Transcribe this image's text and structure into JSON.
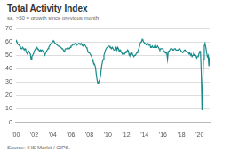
{
  "chart_data": {
    "type": "line",
    "title": "Total Activity Index",
    "subtitle": "sa, >50 = growth since previous month",
    "source": "Source: IHS Markit / CIPS.",
    "categories": [
      "'00",
      null,
      null,
      null,
      null,
      null,
      null,
      null,
      null,
      null,
      null,
      null,
      null,
      null,
      null,
      null,
      null,
      null,
      null,
      null,
      null,
      null,
      null,
      null,
      "'02",
      null,
      null,
      null,
      null,
      null,
      null,
      null,
      null,
      null,
      null,
      null,
      null,
      null,
      null,
      null,
      null,
      null,
      null,
      null,
      null,
      null,
      null,
      null,
      "'04",
      null,
      null,
      null,
      null,
      null,
      null,
      null,
      null,
      null,
      null,
      null,
      null,
      null,
      null,
      null,
      null,
      null,
      null,
      null,
      null,
      null,
      null,
      null,
      "'06",
      null,
      null,
      null,
      null,
      null,
      null,
      null,
      null,
      null,
      null,
      null,
      null,
      null,
      null,
      null,
      null,
      null,
      null,
      null,
      null,
      null,
      null,
      null,
      "'08",
      null,
      null,
      null,
      null,
      null,
      null,
      null,
      null,
      null,
      null,
      null,
      null,
      null,
      null,
      null,
      null,
      null,
      null,
      null,
      null,
      null,
      null,
      null,
      "'10",
      null,
      null,
      null,
      null,
      null,
      null,
      null,
      null,
      null,
      null,
      null,
      null,
      null,
      null,
      null,
      null,
      null,
      null,
      null,
      null,
      null,
      null,
      null,
      "'12",
      null,
      null,
      null,
      null,
      null,
      null,
      null,
      null,
      null,
      null,
      null,
      null,
      null,
      null,
      null,
      null,
      null,
      null,
      null,
      null,
      null,
      null,
      null,
      "'14",
      null,
      null,
      null,
      null,
      null,
      null,
      null,
      null,
      null,
      null,
      null,
      null,
      null,
      null,
      null,
      null,
      null,
      null,
      null,
      null,
      null,
      null,
      null,
      "'16",
      null,
      null,
      null,
      null,
      null,
      null,
      null,
      null,
      null,
      null,
      null,
      null,
      null,
      null,
      null,
      null,
      null,
      null,
      null,
      null,
      null,
      null,
      null,
      "'18",
      null,
      null,
      null,
      null,
      null,
      null,
      null,
      null,
      null,
      null,
      null,
      null,
      null,
      null,
      null,
      null,
      null,
      null,
      null,
      null,
      null,
      null,
      null,
      "'20",
      null,
      null,
      null,
      null,
      null,
      null,
      null,
      null,
      null,
      null,
      null,
      null,
      null
    ],
    "values": [
      60,
      61,
      59,
      58,
      58,
      57,
      56,
      55,
      55,
      56,
      55,
      54,
      55,
      54,
      52,
      51,
      52,
      53,
      52,
      51,
      47,
      49,
      50,
      51,
      53,
      54,
      55,
      56,
      55,
      55,
      54,
      53,
      54,
      53,
      54,
      54,
      53,
      51,
      50,
      52,
      53,
      54,
      55,
      56,
      57,
      58,
      59,
      59,
      60,
      61,
      60,
      59,
      59,
      58,
      58,
      57,
      57,
      57,
      56,
      56,
      55,
      55,
      54,
      53,
      54,
      55,
      55,
      55,
      56,
      55,
      55,
      56,
      57,
      57,
      58,
      58,
      58,
      59,
      59,
      58,
      58,
      58,
      59,
      59,
      58,
      59,
      58,
      58,
      57,
      58,
      58,
      57,
      56,
      55,
      53,
      52,
      52,
      51,
      50,
      49,
      47,
      45,
      44,
      43,
      41,
      36,
      32,
      29,
      30,
      31,
      33,
      37,
      42,
      45,
      47,
      50,
      52,
      54,
      55,
      56,
      56,
      57,
      57,
      56,
      56,
      55,
      56,
      55,
      54,
      54,
      55,
      56,
      54,
      56,
      55,
      53,
      54,
      53,
      52,
      51,
      52,
      51,
      51,
      52,
      53,
      53,
      54,
      53,
      50,
      51,
      49,
      52,
      51,
      50,
      49,
      50,
      50,
      51,
      52,
      53,
      54,
      56,
      58,
      60,
      60,
      62,
      61,
      60,
      59,
      59,
      58,
      59,
      59,
      58,
      58,
      58,
      56,
      56,
      57,
      56,
      56,
      57,
      58,
      56,
      56,
      57,
      56,
      55,
      54,
      55,
      55,
      55,
      55,
      53,
      53,
      52,
      52,
      52,
      47,
      53,
      53,
      54,
      55,
      55,
      55,
      54,
      54,
      55,
      55,
      54,
      54,
      54,
      54,
      55,
      55,
      54,
      53,
      53,
      52,
      53,
      54,
      54,
      53,
      53,
      53,
      52,
      51,
      52,
      50,
      51,
      49,
      50,
      51,
      50,
      50,
      50,
      48,
      49,
      49,
      49,
      53,
      53,
      38,
      9,
      30,
      47,
      57,
      59,
      56,
      52,
      49,
      50,
      42,
      49
    ],
    "color": "#178a8a",
    "marker": "none",
    "line_style": "solid",
    "ylim": [
      0,
      70
    ],
    "yticks": [
      0,
      10,
      20,
      30,
      40,
      50,
      60,
      70
    ],
    "grid": true
  }
}
